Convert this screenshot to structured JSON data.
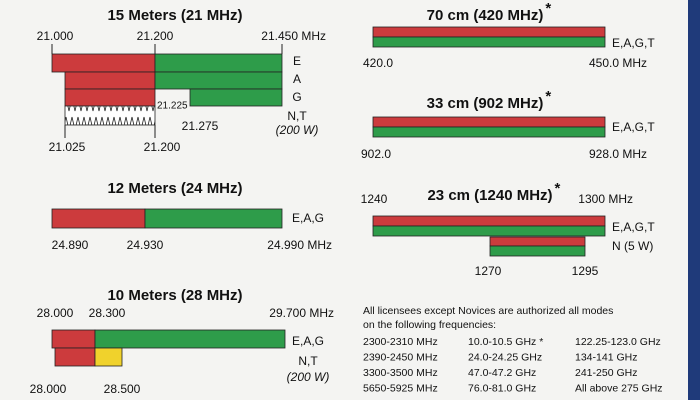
{
  "band_15m": {
    "title": "15 Meters (21 MHz)",
    "top_labels": [
      "21.000",
      "21.200",
      "21.450 MHz"
    ],
    "modes": [
      "E",
      "A",
      "G",
      "N,T"
    ],
    "power": "(200 W)",
    "inner_labels": [
      "21.225",
      "21.275"
    ],
    "bottom_labels": [
      "21.025",
      "21.200"
    ]
  },
  "band_12m": {
    "title": "12 Meters (24 MHz)",
    "modes": [
      "E,A,G"
    ],
    "bottom_labels": [
      "24.890",
      "24.930",
      "24.990 MHz"
    ]
  },
  "band_10m": {
    "title": "10 Meters (28 MHz)",
    "top_labels": [
      "28.000",
      "28.300",
      "29.700 MHz"
    ],
    "modes": [
      "E,A,G",
      "N,T"
    ],
    "power": "(200 W)",
    "bottom_labels": [
      "28.000",
      "28.500"
    ]
  },
  "band_70cm": {
    "title": "70 cm (420 MHz)",
    "asterisk": "*",
    "modes": [
      "E,A,G,T"
    ],
    "bottom_labels": [
      "420.0",
      "450.0 MHz"
    ]
  },
  "band_33cm": {
    "title": "33 cm (902 MHz)",
    "asterisk": "*",
    "modes": [
      "E,A,G,T"
    ],
    "bottom_labels": [
      "902.0",
      "928.0 MHz"
    ]
  },
  "band_23cm": {
    "title": "23 cm (1240 MHz)",
    "asterisk": "*",
    "top_labels": [
      "1240",
      "1300 MHz"
    ],
    "modes": [
      "E,A,G,T",
      "N (5 W)"
    ],
    "bottom_labels": [
      "1270",
      "1295"
    ]
  },
  "note": {
    "lines": [
      "All licensees except Novices are authorized all modes",
      "on the following frequencies:"
    ],
    "table": [
      [
        "2300-2310 MHz",
        "10.0-10.5 GHz *",
        "122.25-123.0 GHz"
      ],
      [
        "2390-2450 MHz",
        "24.0-24.25 GHz",
        "134-141 GHz"
      ],
      [
        "3300-3500 MHz",
        "47.0-47.2 GHz",
        "241-250 GHz"
      ],
      [
        "5650-5925 MHz",
        "76.0-81.0 GHz",
        "All above 275 GHz"
      ]
    ]
  }
}
